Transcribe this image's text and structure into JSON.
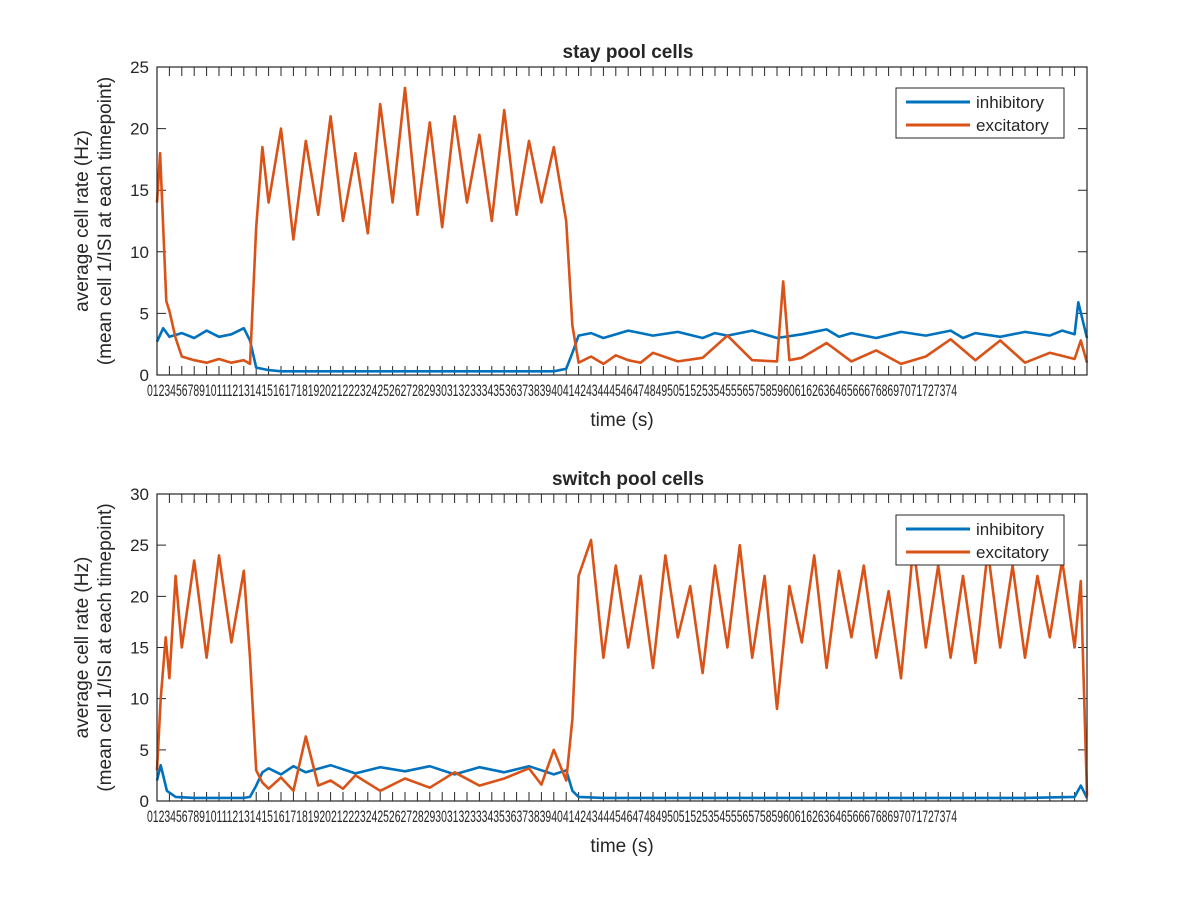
{
  "colors": {
    "inhibitory": "#0072BD",
    "excitatory": "#D95319",
    "axis": "#262626",
    "background": "#ffffff"
  },
  "chart_data": [
    {
      "type": "line",
      "title": "stay pool cells",
      "xlabel": "time (s)",
      "ylabel_line1": "average cell rate (Hz)",
      "ylabel_line2": "(mean cell 1/ISI at each timepoint)",
      "xlim": [
        0,
        75
      ],
      "ylim": [
        0,
        25
      ],
      "yticks": [
        "0",
        "5",
        "10",
        "15",
        "20",
        "25"
      ],
      "xtick_labels": "01234567891011121314151617181920212223242526272829303132333435363738394041424344454647484950515253545556575859606162636465666768697071727374",
      "grid": false,
      "legend_position": "top-right",
      "legend": [
        "inhibitory",
        "excitatory"
      ],
      "series": [
        {
          "name": "inhibitory",
          "x": [
            0,
            0.5,
            1,
            2,
            3,
            4,
            5,
            6,
            7,
            7.5,
            8,
            9,
            10,
            15,
            20,
            25,
            30,
            32,
            33,
            33.5,
            34,
            35,
            36,
            38,
            40,
            42,
            44,
            45,
            46,
            48,
            50,
            52,
            54,
            55,
            56,
            58,
            60,
            62,
            64,
            65,
            66,
            68,
            70,
            72,
            73,
            74,
            74.3,
            75
          ],
          "values": [
            2.7,
            3.8,
            3.1,
            3.4,
            3.0,
            3.6,
            3.1,
            3.3,
            3.8,
            2.8,
            0.6,
            0.4,
            0.3,
            0.3,
            0.3,
            0.3,
            0.3,
            0.3,
            0.5,
            1.8,
            3.2,
            3.4,
            3.0,
            3.6,
            3.2,
            3.5,
            3.0,
            3.4,
            3.2,
            3.6,
            3.0,
            3.3,
            3.7,
            3.1,
            3.4,
            3.0,
            3.5,
            3.2,
            3.6,
            3.0,
            3.4,
            3.1,
            3.5,
            3.2,
            3.6,
            3.3,
            5.9,
            3.0
          ]
        },
        {
          "name": "excitatory",
          "x": [
            0,
            0.25,
            0.5,
            0.75,
            1,
            1.5,
            2,
            3,
            4,
            5,
            6,
            7,
            7.5,
            8,
            8.5,
            9,
            10,
            11,
            12,
            13,
            14,
            15,
            16,
            17,
            18,
            19,
            20,
            21,
            22,
            23,
            24,
            25,
            26,
            27,
            28,
            29,
            30,
            31,
            32,
            33,
            33.5,
            34,
            35,
            36,
            37,
            38,
            39,
            40,
            42,
            44,
            46,
            48,
            50,
            50.5,
            51,
            52,
            54,
            56,
            58,
            60,
            62,
            64,
            66,
            68,
            70,
            72,
            74,
            74.5,
            75
          ],
          "values": [
            14.0,
            18.0,
            12.0,
            6.0,
            5.2,
            3.0,
            1.5,
            1.2,
            1.0,
            1.3,
            1.0,
            1.2,
            0.9,
            12.0,
            18.5,
            14.0,
            20.0,
            11.0,
            19.0,
            13.0,
            21.0,
            12.5,
            18.0,
            11.5,
            22.0,
            14.0,
            23.3,
            13.0,
            20.5,
            12.0,
            21.0,
            14.0,
            19.5,
            12.5,
            21.5,
            13.0,
            19.0,
            14.0,
            18.5,
            12.5,
            4.0,
            1.0,
            1.5,
            0.9,
            1.6,
            1.2,
            1.0,
            1.8,
            1.1,
            1.4,
            3.2,
            1.2,
            1.1,
            7.6,
            1.2,
            1.4,
            2.6,
            1.1,
            2.0,
            0.9,
            1.5,
            2.9,
            1.2,
            2.8,
            1.0,
            1.8,
            1.3,
            2.8,
            1.0
          ]
        }
      ]
    },
    {
      "type": "line",
      "title": "switch pool cells",
      "xlabel": "time (s)",
      "ylabel_line1": "average cell rate (Hz)",
      "ylabel_line2": "(mean cell 1/ISI at each timepoint)",
      "xlim": [
        0,
        75
      ],
      "ylim": [
        0,
        30
      ],
      "yticks": [
        "0",
        "5",
        "10",
        "15",
        "20",
        "25",
        "30"
      ],
      "xtick_labels": "01234567891011121314151617181920212223242526272829303132333435363738394041424344454647484950515253545556575859606162636465666768697071727374",
      "grid": false,
      "legend_position": "top-right",
      "legend": [
        "inhibitory",
        "excitatory"
      ],
      "series": [
        {
          "name": "inhibitory",
          "x": [
            0,
            0.3,
            0.8,
            1.5,
            3,
            5,
            7,
            7.5,
            8,
            8.5,
            9,
            10,
            11,
            12,
            14,
            16,
            18,
            20,
            22,
            24,
            26,
            28,
            30,
            32,
            33,
            33.5,
            34,
            36,
            40,
            45,
            50,
            55,
            60,
            65,
            70,
            74,
            74.5,
            75
          ],
          "values": [
            2.0,
            3.5,
            1.0,
            0.4,
            0.3,
            0.3,
            0.3,
            0.4,
            1.5,
            2.8,
            3.2,
            2.6,
            3.4,
            2.8,
            3.5,
            2.7,
            3.3,
            2.9,
            3.4,
            2.6,
            3.3,
            2.8,
            3.4,
            2.6,
            3.0,
            1.0,
            0.4,
            0.3,
            0.3,
            0.3,
            0.3,
            0.3,
            0.3,
            0.3,
            0.3,
            0.4,
            1.5,
            0.3
          ]
        },
        {
          "name": "excitatory",
          "x": [
            0,
            0.3,
            0.7,
            1,
            1.5,
            2,
            3,
            4,
            5,
            6,
            7,
            7.5,
            8,
            8.5,
            9,
            10,
            11,
            12,
            13,
            14,
            15,
            16,
            18,
            20,
            22,
            24,
            26,
            28,
            30,
            31,
            32,
            33,
            33.5,
            34,
            35,
            36,
            37,
            38,
            39,
            40,
            41,
            42,
            43,
            44,
            45,
            46,
            47,
            48,
            49,
            50,
            51,
            52,
            53,
            54,
            55,
            56,
            57,
            58,
            59,
            60,
            61,
            62,
            63,
            64,
            65,
            66,
            67,
            68,
            69,
            70,
            71,
            72,
            73,
            74,
            74.5,
            75
          ],
          "values": [
            3.0,
            10.0,
            16.0,
            12.0,
            22.0,
            15.0,
            23.5,
            14.0,
            24.0,
            15.5,
            22.5,
            14.0,
            3.0,
            1.8,
            1.2,
            2.3,
            1.0,
            6.3,
            1.5,
            2.0,
            1.2,
            2.5,
            1.0,
            2.2,
            1.3,
            2.8,
            1.5,
            2.2,
            3.2,
            1.6,
            5.0,
            2.0,
            8.0,
            22.0,
            25.5,
            14.0,
            23.0,
            15.0,
            22.0,
            13.0,
            24.0,
            16.0,
            21.0,
            12.5,
            23.0,
            15.0,
            25.0,
            14.0,
            22.0,
            9.0,
            21.0,
            15.5,
            24.0,
            13.0,
            22.5,
            16.0,
            23.0,
            14.0,
            20.5,
            12.0,
            25.0,
            15.0,
            23.0,
            14.0,
            22.0,
            13.5,
            24.5,
            15.0,
            23.0,
            14.0,
            22.0,
            16.0,
            23.5,
            15.0,
            21.5,
            0.5
          ]
        }
      ]
    }
  ]
}
